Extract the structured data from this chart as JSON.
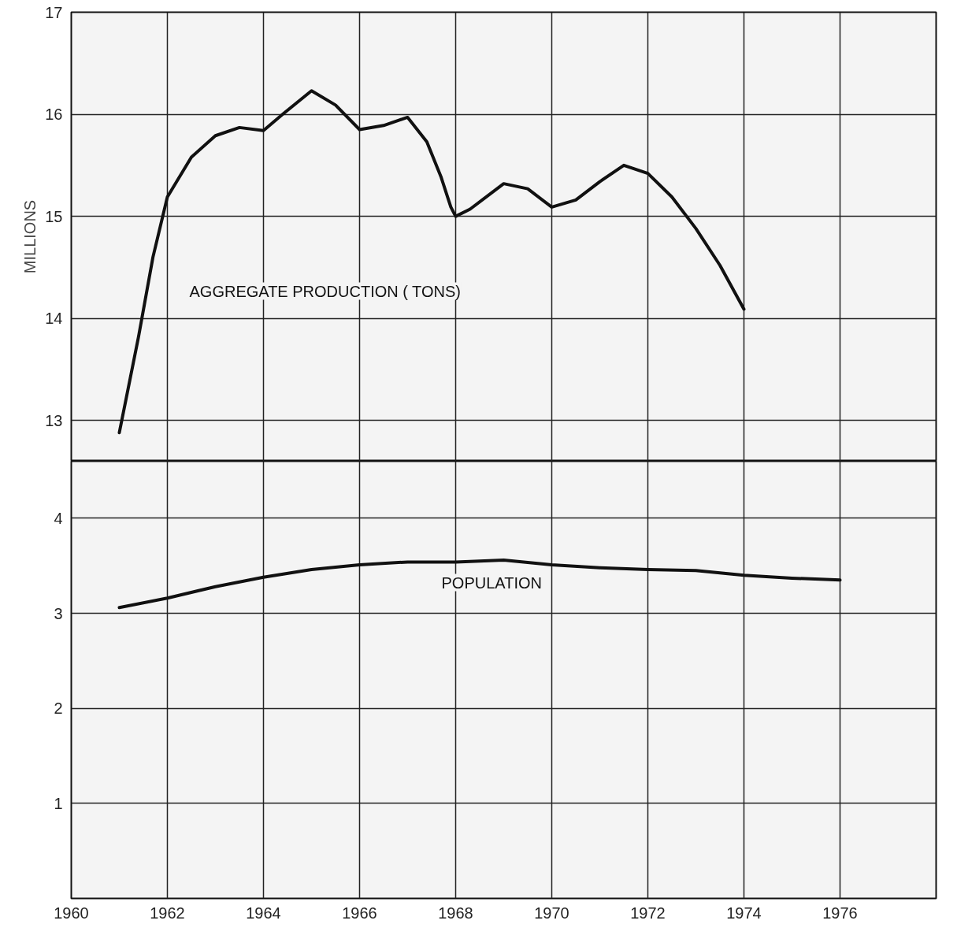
{
  "chart_data": [
    {
      "type": "line",
      "ylabel": "MILLIONS",
      "xlim": [
        1960,
        1978
      ],
      "xticks": [
        1960,
        1962,
        1964,
        1966,
        1968,
        1970,
        1972,
        1974,
        1976
      ],
      "ylim": [
        12.6,
        17
      ],
      "yticks": [
        13,
        14,
        15,
        16,
        17
      ],
      "tick_labels": "y",
      "grid": true,
      "marker": "none",
      "line_style": "solid",
      "series": [
        {
          "color": "#111111",
          "x": [
            1961.0,
            1961.4,
            1961.7,
            1962,
            1962.5,
            1963,
            1963.5,
            1964,
            1964.4,
            1965,
            1965.5,
            1966,
            1966.5,
            1967,
            1967.4,
            1967.7,
            1967.9,
            1968,
            1968.3,
            1969,
            1969.5,
            1970,
            1970.5,
            1971,
            1971.5,
            1972,
            1972.5,
            1973,
            1973.5,
            1974
          ],
          "values": [
            12.88,
            13.82,
            14.6,
            15.19,
            15.58,
            15.79,
            15.87,
            15.84,
            16.0,
            16.23,
            16.09,
            15.85,
            15.89,
            15.97,
            15.73,
            15.38,
            15.09,
            15.0,
            15.07,
            15.32,
            15.27,
            15.09,
            15.16,
            15.34,
            15.5,
            15.42,
            15.19,
            14.88,
            14.52,
            14.09
          ]
        }
      ],
      "annotations": [
        "AGGREGATE PRODUCTION ( TONS)"
      ]
    },
    {
      "type": "line",
      "xlim": [
        1960,
        1978
      ],
      "xticks": [
        1960,
        1962,
        1964,
        1966,
        1968,
        1970,
        1972,
        1974,
        1976
      ],
      "ylim": [
        0,
        4.6
      ],
      "yticks": [
        1,
        2,
        3,
        4
      ],
      "grid": true,
      "marker": "none",
      "line_style": "solid",
      "series": [
        {
          "color": "#111111",
          "x": [
            1961,
            1962,
            1963,
            1964,
            1965,
            1966,
            1967,
            1968,
            1969,
            1970,
            1971,
            1972,
            1973,
            1974,
            1975,
            1976
          ],
          "values": [
            3.06,
            3.16,
            3.28,
            3.38,
            3.46,
            3.51,
            3.54,
            3.54,
            3.56,
            3.51,
            3.48,
            3.46,
            3.45,
            3.4,
            3.37,
            3.35
          ]
        }
      ],
      "annotations": [
        "POPULATION"
      ]
    }
  ]
}
